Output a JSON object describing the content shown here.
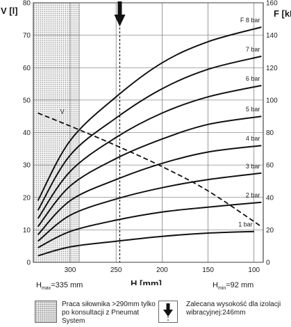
{
  "chart_data": {
    "type": "line",
    "x": {
      "label": "H [mm]",
      "ticks": [
        300,
        250,
        200,
        150,
        100
      ],
      "range_reversed": [
        340,
        90
      ]
    },
    "y_left": {
      "label": "V [l]",
      "ticks": [
        0,
        10,
        20,
        30,
        40,
        50,
        60,
        70,
        80
      ],
      "range": [
        0,
        80
      ]
    },
    "y_right": {
      "label": "F [kN]",
      "ticks": [
        0,
        20,
        40,
        60,
        80,
        100,
        120,
        140,
        160
      ],
      "range": [
        0,
        160
      ]
    },
    "grid": true,
    "force_series": [
      {
        "name": "1 bar",
        "points": [
          [
            335,
            4
          ],
          [
            300,
            9.5
          ],
          [
            250,
            13
          ],
          [
            200,
            16
          ],
          [
            150,
            18
          ],
          [
            100,
            19
          ]
        ]
      },
      {
        "name": "2 bar",
        "points": [
          [
            335,
            9
          ],
          [
            300,
            19
          ],
          [
            250,
            26
          ],
          [
            200,
            31
          ],
          [
            150,
            34
          ],
          [
            92,
            37
          ]
        ]
      },
      {
        "name": "3 bar",
        "points": [
          [
            335,
            13
          ],
          [
            300,
            29
          ],
          [
            250,
            39
          ],
          [
            200,
            46
          ],
          [
            150,
            51
          ],
          [
            92,
            55
          ]
        ]
      },
      {
        "name": "4 bar",
        "points": [
          [
            335,
            17
          ],
          [
            300,
            38
          ],
          [
            250,
            51
          ],
          [
            200,
            61
          ],
          [
            150,
            68
          ],
          [
            92,
            72
          ]
        ]
      },
      {
        "name": "5 bar",
        "points": [
          [
            335,
            22
          ],
          [
            300,
            47
          ],
          [
            250,
            64
          ],
          [
            200,
            76
          ],
          [
            150,
            85
          ],
          [
            92,
            90
          ]
        ]
      },
      {
        "name": "6 bar",
        "points": [
          [
            335,
            27
          ],
          [
            300,
            56
          ],
          [
            250,
            77
          ],
          [
            200,
            92
          ],
          [
            150,
            102
          ],
          [
            92,
            109
          ]
        ]
      },
      {
        "name": "7 bar",
        "points": [
          [
            335,
            32
          ],
          [
            300,
            66
          ],
          [
            250,
            89
          ],
          [
            200,
            107
          ],
          [
            150,
            119
          ],
          [
            92,
            127
          ]
        ]
      },
      {
        "name": "F 8 bar",
        "points": [
          [
            335,
            38
          ],
          [
            300,
            75
          ],
          [
            250,
            102
          ],
          [
            200,
            123
          ],
          [
            150,
            136
          ],
          [
            92,
            145
          ]
        ]
      }
    ],
    "volume_curve": {
      "name": "V",
      "points": [
        [
          335,
          46
        ],
        [
          300,
          42
        ],
        [
          250,
          36
        ],
        [
          200,
          29.5
        ],
        [
          150,
          22
        ],
        [
          92,
          11
        ]
      ]
    },
    "restricted_zone": {
      "from": 335,
      "to": 290
    },
    "recommended_height": 246
  },
  "labels": {
    "hmax_prefix": "H",
    "hmax_sub": "max",
    "hmax_value": "=335 mm",
    "hmin_prefix": "H",
    "hmin_sub": "min",
    "hmin_value": "=92 mm"
  },
  "legend": {
    "zone_note": "Praca siłownika >290mm tylko po konsultacji z Pneumat System",
    "arrow_note": "Zalecana wysokość dla izolacji wibracyjnej:246mm"
  },
  "colors": {
    "curve": "#111111",
    "grid": "#555555",
    "hatch": "#b8b8b8"
  }
}
